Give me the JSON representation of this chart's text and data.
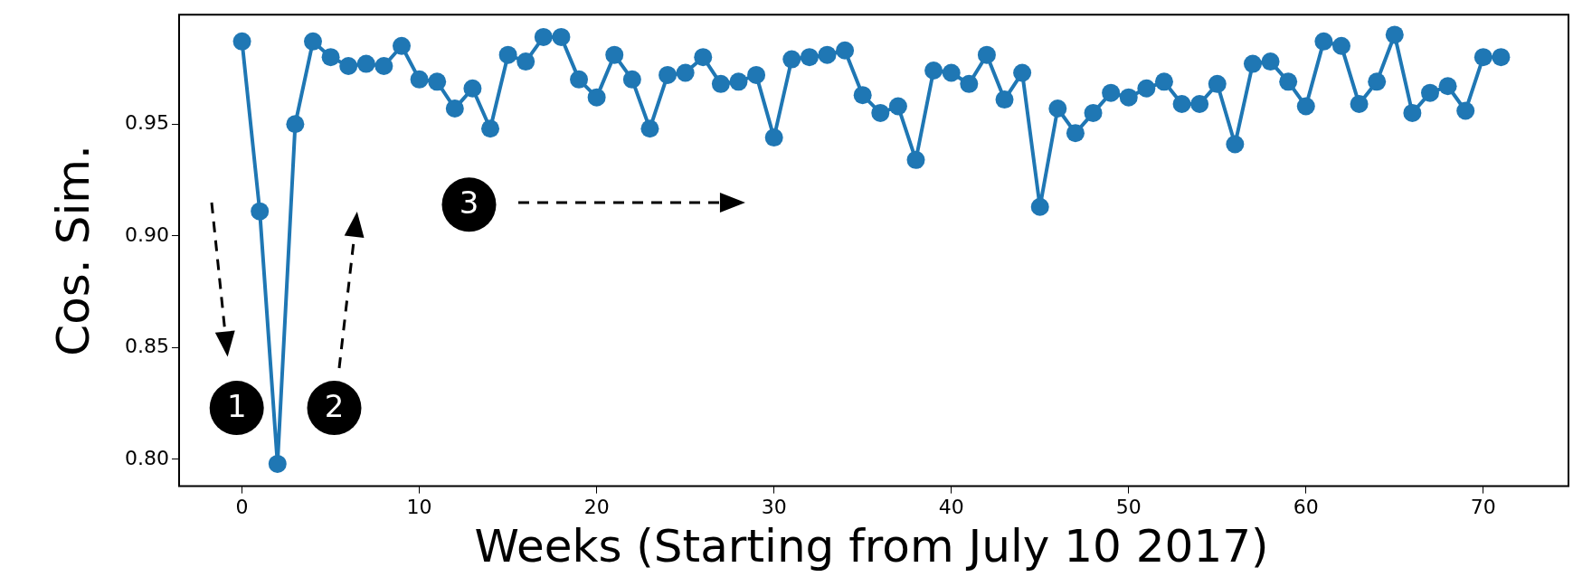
{
  "chart_data": {
    "type": "line",
    "xlabel": "Weeks (Starting from July 10 2017)",
    "ylabel": "Cos. Sim.",
    "x": [
      0,
      1,
      2,
      3,
      4,
      5,
      6,
      7,
      8,
      9,
      10,
      11,
      12,
      13,
      14,
      15,
      16,
      17,
      18,
      19,
      20,
      21,
      22,
      23,
      24,
      25,
      26,
      27,
      28,
      29,
      30,
      31,
      32,
      33,
      34,
      35,
      36,
      37,
      38,
      39,
      40,
      41,
      42,
      43,
      44,
      45,
      46,
      47,
      48,
      49,
      50,
      51,
      52,
      53,
      54,
      55,
      56,
      57,
      58,
      59,
      60,
      61,
      62,
      63,
      64,
      65,
      66,
      67,
      68,
      69,
      70,
      71
    ],
    "series": [
      {
        "color": "#1f77b4",
        "values": [
          0.987,
          0.911,
          0.798,
          0.95,
          0.987,
          0.98,
          0.976,
          0.977,
          0.976,
          0.985,
          0.97,
          0.969,
          0.957,
          0.966,
          0.948,
          0.981,
          0.978,
          0.989,
          0.989,
          0.97,
          0.962,
          0.981,
          0.97,
          0.948,
          0.972,
          0.973,
          0.98,
          0.968,
          0.969,
          0.972,
          0.944,
          0.979,
          0.98,
          0.981,
          0.983,
          0.963,
          0.955,
          0.958,
          0.934,
          0.974,
          0.973,
          0.968,
          0.981,
          0.961,
          0.973,
          0.913,
          0.957,
          0.946,
          0.955,
          0.964,
          0.962,
          0.966,
          0.969,
          0.959,
          0.959,
          0.968,
          0.941,
          0.977,
          0.978,
          0.969,
          0.958,
          0.987,
          0.985,
          0.959,
          0.969,
          0.99,
          0.955,
          0.964,
          0.967,
          0.956,
          0.98,
          0.98
        ]
      }
    ],
    "xlim": [
      -3.55,
      74.55
    ],
    "ylim": [
      0.788,
      0.999
    ],
    "xticks": [
      0,
      10,
      20,
      30,
      40,
      50,
      60,
      70
    ],
    "yticks": [
      {
        "value": 0.8,
        "label": "0.80"
      },
      {
        "value": 0.85,
        "label": "0.85"
      },
      {
        "value": 0.9,
        "label": "0.90"
      },
      {
        "value": 0.95,
        "label": "0.95"
      }
    ],
    "grid": false,
    "legend": false,
    "marker": "circle",
    "line_style": "solid",
    "annotations": [
      "1",
      "2",
      "3"
    ]
  }
}
